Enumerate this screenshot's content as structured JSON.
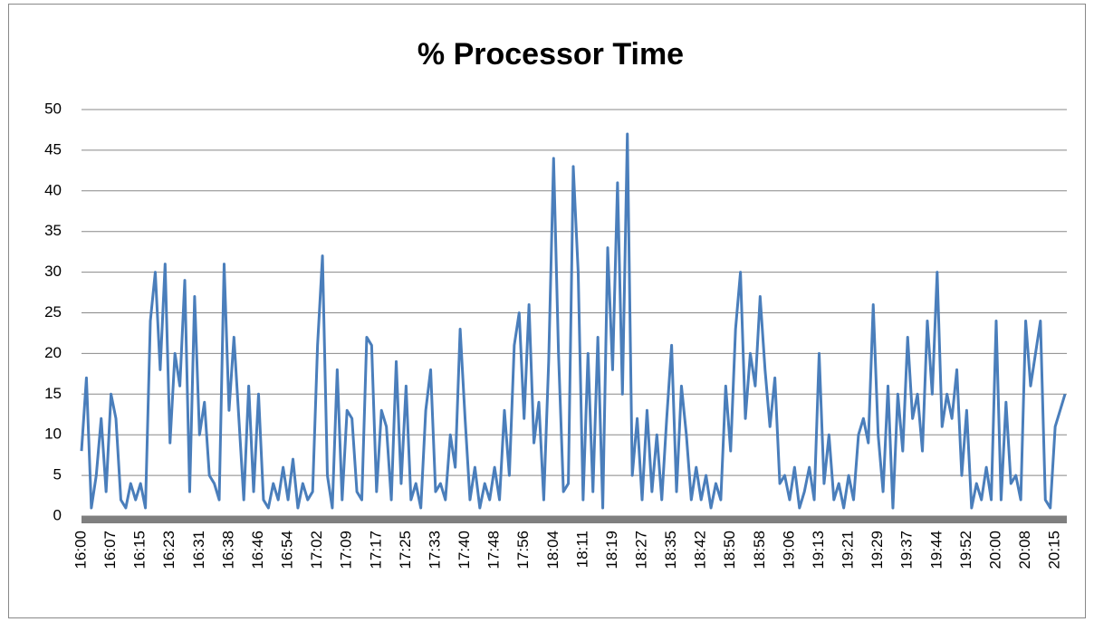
{
  "chart_data": {
    "type": "line",
    "title": "% Processor Time",
    "categories": [
      "16:00",
      null,
      null,
      null,
      null,
      null,
      "16:07",
      null,
      null,
      null,
      null,
      null,
      "16:15",
      null,
      null,
      null,
      null,
      null,
      "16:23",
      null,
      null,
      null,
      null,
      null,
      "16:31",
      null,
      null,
      null,
      null,
      null,
      "16:38",
      null,
      null,
      null,
      null,
      null,
      "16:46",
      null,
      null,
      null,
      null,
      null,
      "16:54",
      null,
      null,
      null,
      null,
      null,
      "17:02",
      null,
      null,
      null,
      null,
      null,
      "17:09",
      null,
      null,
      null,
      null,
      null,
      "17:17",
      null,
      null,
      null,
      null,
      null,
      "17:25",
      null,
      null,
      null,
      null,
      null,
      "17:33",
      null,
      null,
      null,
      null,
      null,
      "17:40",
      null,
      null,
      null,
      null,
      null,
      "17:48",
      null,
      null,
      null,
      null,
      null,
      "17:56",
      null,
      null,
      null,
      null,
      null,
      "18:04",
      null,
      null,
      null,
      null,
      null,
      "18:11",
      null,
      null,
      null,
      null,
      null,
      "18:19",
      null,
      null,
      null,
      null,
      null,
      "18:27",
      null,
      null,
      null,
      null,
      null,
      "18:35",
      null,
      null,
      null,
      null,
      null,
      "18:42",
      null,
      null,
      null,
      null,
      null,
      "18:50",
      null,
      null,
      null,
      null,
      null,
      "18:58",
      null,
      null,
      null,
      null,
      null,
      "19:06",
      null,
      null,
      null,
      null,
      null,
      "19:13",
      null,
      null,
      null,
      null,
      null,
      "19:21",
      null,
      null,
      null,
      null,
      null,
      "19:29",
      null,
      null,
      null,
      null,
      null,
      "19:37",
      null,
      null,
      null,
      null,
      null,
      "19:44",
      null,
      null,
      null,
      null,
      null,
      "19:52",
      null,
      null,
      null,
      null,
      null,
      "20:00",
      null,
      null,
      null,
      null,
      null,
      "20:08",
      null,
      null,
      null,
      null,
      null,
      "20:15",
      null,
      null
    ],
    "values": [
      8,
      17,
      1,
      5,
      12,
      3,
      15,
      12,
      2,
      1,
      4,
      2,
      4,
      1,
      24,
      30,
      18,
      31,
      9,
      20,
      16,
      29,
      3,
      27,
      10,
      14,
      5,
      4,
      2,
      31,
      13,
      22,
      12,
      2,
      16,
      3,
      15,
      2,
      1,
      4,
      2,
      6,
      2,
      7,
      1,
      4,
      2,
      3,
      21,
      32,
      5,
      1,
      18,
      2,
      13,
      12,
      3,
      2,
      22,
      21,
      3,
      13,
      11,
      2,
      19,
      4,
      16,
      2,
      4,
      1,
      13,
      18,
      3,
      4,
      2,
      10,
      6,
      23,
      12,
      2,
      6,
      1,
      4,
      2,
      6,
      2,
      13,
      5,
      21,
      25,
      12,
      26,
      9,
      14,
      2,
      19,
      44,
      20,
      3,
      4,
      43,
      30,
      2,
      20,
      3,
      22,
      1,
      33,
      18,
      41,
      15,
      47,
      5,
      12,
      2,
      13,
      3,
      10,
      2,
      12,
      21,
      3,
      16,
      10,
      2,
      6,
      2,
      5,
      1,
      4,
      2,
      16,
      8,
      23,
      30,
      12,
      20,
      16,
      27,
      18,
      11,
      17,
      4,
      5,
      2,
      6,
      1,
      3,
      6,
      2,
      20,
      4,
      10,
      2,
      4,
      1,
      5,
      2,
      10,
      12,
      9,
      26,
      10,
      3,
      16,
      1,
      15,
      8,
      22,
      12,
      15,
      8,
      24,
      15,
      30,
      11,
      15,
      12,
      18,
      5,
      13,
      1,
      4,
      2,
      6,
      2,
      24,
      2,
      14,
      4,
      5,
      2,
      24,
      16,
      20,
      24,
      2,
      1,
      11,
      13,
      15
    ],
    "color": "#4a7ebb",
    "ylim": [
      0,
      50
    ],
    "yticks": [
      0,
      5,
      10,
      15,
      20,
      25,
      30,
      35,
      40,
      45,
      50
    ],
    "grid": true
  }
}
